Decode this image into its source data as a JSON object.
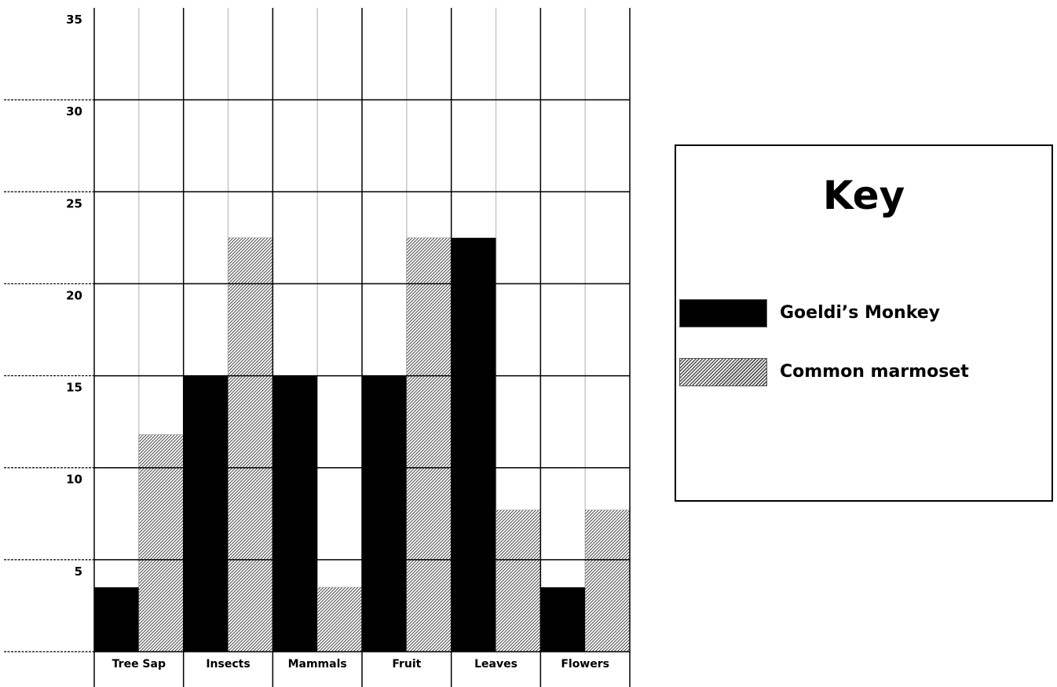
{
  "chart_data": {
    "type": "bar",
    "categories": [
      "Tree Sap",
      "Insects",
      "Mammals",
      "Fruit",
      "Leaves",
      "Flowers"
    ],
    "series": [
      {
        "name": "Goeldi’s Monkey",
        "values": [
          3.5,
          15,
          15,
          15,
          22.5,
          3.5
        ]
      },
      {
        "name": "Common marmoset",
        "values": [
          11.8,
          22.5,
          3.5,
          22.5,
          7.7,
          7.7
        ]
      }
    ],
    "ylim": [
      0,
      35
    ],
    "yticks": [
      5,
      10,
      15,
      20,
      25,
      30,
      35
    ],
    "title": "",
    "xlabel": "",
    "ylabel": "",
    "grid": true,
    "legend_title": "Key",
    "legend_position": "right",
    "colors": {
      "series0": "#000000",
      "series1_hatch_dark": "#555555",
      "series1_hatch_light": "#ffffff"
    }
  }
}
